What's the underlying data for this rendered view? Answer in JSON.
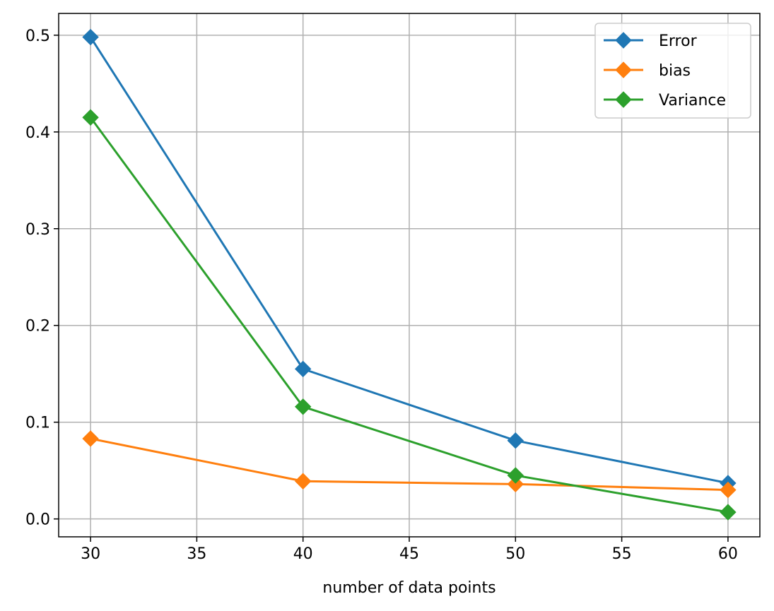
{
  "chart_data": {
    "type": "line",
    "title": "",
    "xlabel": "number of data points",
    "ylabel": "",
    "x": [
      30,
      40,
      50,
      60
    ],
    "xlim": [
      28.5,
      61.5
    ],
    "ylim": [
      -0.0185,
      0.5225
    ],
    "xticks": [
      30,
      35,
      40,
      45,
      50,
      55,
      60
    ],
    "yticks": [
      0.0,
      0.1,
      0.2,
      0.3,
      0.4,
      0.5
    ],
    "xtick_labels": [
      "30",
      "35",
      "40",
      "45",
      "50",
      "55",
      "60"
    ],
    "ytick_labels": [
      "0.0",
      "0.1",
      "0.2",
      "0.3",
      "0.4",
      "0.5"
    ],
    "grid": true,
    "legend_position": "top-right",
    "marker": "diamond",
    "series": [
      {
        "name": "Error",
        "color": "#1f77b4",
        "values": [
          0.498,
          0.155,
          0.081,
          0.037
        ]
      },
      {
        "name": "bias",
        "color": "#ff7f0e",
        "values": [
          0.083,
          0.039,
          0.036,
          0.03
        ]
      },
      {
        "name": "Variance",
        "color": "#2ca02c",
        "values": [
          0.415,
          0.116,
          0.045,
          0.007
        ]
      }
    ]
  }
}
